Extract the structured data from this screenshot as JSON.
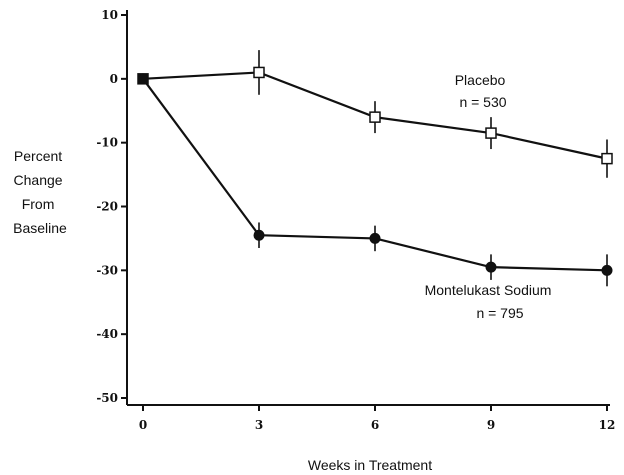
{
  "chart_data": {
    "type": "line",
    "xlabel": "Weeks in Treatment",
    "ylabel_lines": [
      "Percent",
      "Change",
      "From",
      "Baseline"
    ],
    "x_ticks": [
      0,
      3,
      6,
      9,
      12
    ],
    "y_ticks": [
      10,
      0,
      -10,
      -20,
      -30,
      -40,
      -50
    ],
    "xlim": [
      0,
      12
    ],
    "ylim": [
      -50,
      10
    ],
    "grid": false,
    "series": [
      {
        "name": "Placebo",
        "n_label": "n = 530",
        "marker": "open-square",
        "x": [
          0,
          3,
          6,
          9,
          12
        ],
        "y": [
          0,
          1,
          -6,
          -8.5,
          -12.5
        ],
        "err": [
          0,
          3.5,
          2.5,
          2.5,
          3
        ]
      },
      {
        "name": "Montelukast Sodium",
        "n_label": "n = 795",
        "marker": "filled-circle",
        "x": [
          0,
          3,
          6,
          9,
          12
        ],
        "y": [
          0,
          -24.5,
          -25,
          -29.5,
          -30
        ],
        "err": [
          0,
          2,
          2,
          2,
          2.5
        ]
      }
    ]
  }
}
